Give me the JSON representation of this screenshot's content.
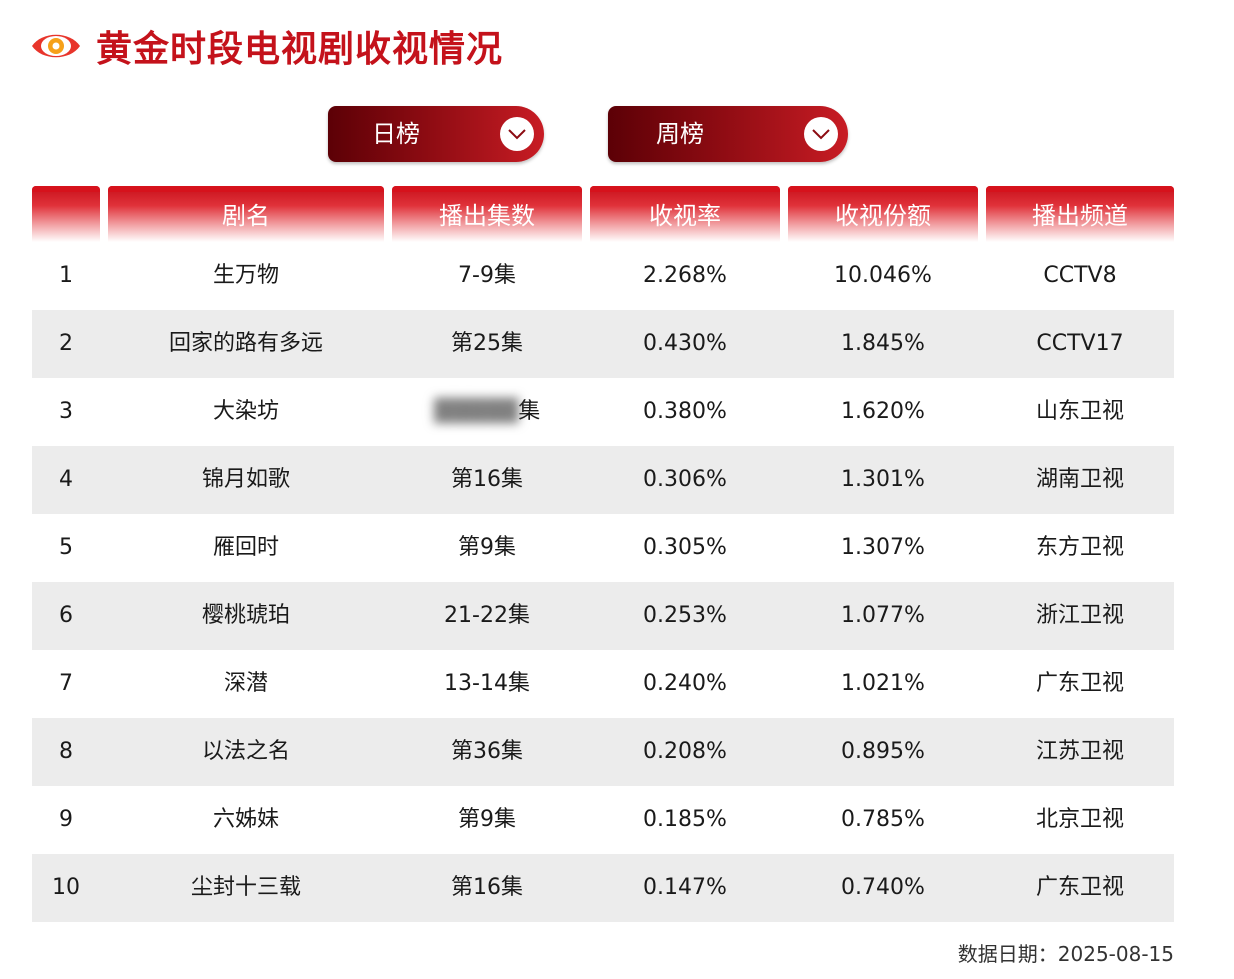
{
  "header": {
    "title": "黄金时段电视剧收视情况",
    "logo_icon": "eye-icon",
    "accent_color": "#c4121b"
  },
  "filters": {
    "day_label": "日榜",
    "week_label": "周榜"
  },
  "table": {
    "columns": [
      "",
      "剧名",
      "播出集数",
      "收视率",
      "收视份额",
      "播出频道"
    ],
    "rows": [
      {
        "rank": "1",
        "name": "生万物",
        "episodes": "7-9集",
        "rating": "2.268%",
        "share": "10.046%",
        "channel": "CCTV8"
      },
      {
        "rank": "2",
        "name": "回家的路有多远",
        "episodes": "第25集",
        "rating": "0.430%",
        "share": "1.845%",
        "channel": "CCTV17"
      },
      {
        "rank": "3",
        "name": "大染坊",
        "episodes": "集",
        "rating": "0.380%",
        "share": "1.620%",
        "channel": "山东卫视"
      },
      {
        "rank": "4",
        "name": "锦月如歌",
        "episodes": "第16集",
        "rating": "0.306%",
        "share": "1.301%",
        "channel": "湖南卫视"
      },
      {
        "rank": "5",
        "name": "雁回时",
        "episodes": "第9集",
        "rating": "0.305%",
        "share": "1.307%",
        "channel": "东方卫视"
      },
      {
        "rank": "6",
        "name": "樱桃琥珀",
        "episodes": "21-22集",
        "rating": "0.253%",
        "share": "1.077%",
        "channel": "浙江卫视"
      },
      {
        "rank": "7",
        "name": "深潜",
        "episodes": "13-14集",
        "rating": "0.240%",
        "share": "1.021%",
        "channel": "广东卫视"
      },
      {
        "rank": "8",
        "name": "以法之名",
        "episodes": "第36集",
        "rating": "0.208%",
        "share": "0.895%",
        "channel": "江苏卫视"
      },
      {
        "rank": "9",
        "name": "六姊妹",
        "episodes": "第9集",
        "rating": "0.185%",
        "share": "0.785%",
        "channel": "北京卫视"
      },
      {
        "rank": "10",
        "name": "尘封十三载",
        "episodes": "第16集",
        "rating": "0.147%",
        "share": "0.740%",
        "channel": "广东卫视"
      }
    ]
  },
  "footer": {
    "date_text": "数据日期：2025-08-15"
  }
}
